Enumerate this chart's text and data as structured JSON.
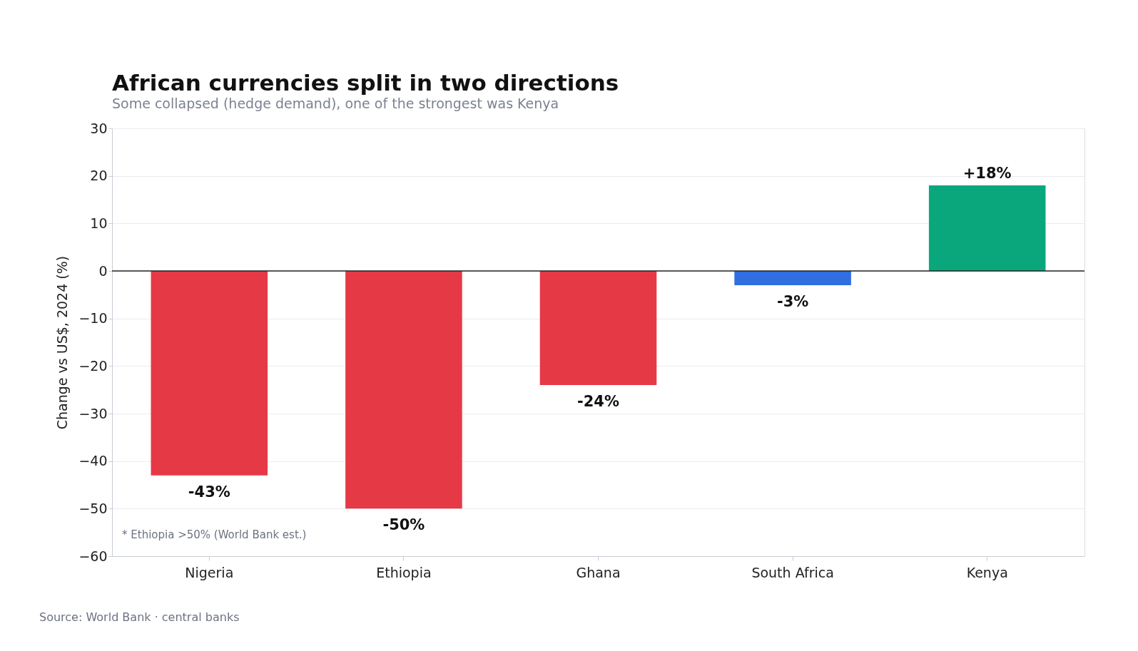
{
  "chart_data": {
    "type": "bar",
    "title": "African currencies split in two directions",
    "subtitle": "Some collapsed (hedge demand), one of the strongest was Kenya",
    "ylabel": "Change vs US$, 2024 (%)",
    "categories": [
      "Nigeria",
      "Ethiopia",
      "Ghana",
      "South Africa",
      "Kenya"
    ],
    "values": [
      -43,
      -50,
      -24,
      -3,
      18
    ],
    "colors": [
      "#e63946",
      "#e63946",
      "#e63946",
      "#2f6fdf",
      "#0aa77d"
    ],
    "value_labels": [
      "-43%",
      "-50%",
      "-24%",
      "-3%",
      "+18%"
    ],
    "ylim": [
      -60,
      30
    ],
    "yticks": [
      {
        "value": -60,
        "label": "−60"
      },
      {
        "value": -50,
        "label": "−50"
      },
      {
        "value": -40,
        "label": "−40"
      },
      {
        "value": -30,
        "label": "−30"
      },
      {
        "value": -20,
        "label": "−20"
      },
      {
        "value": -10,
        "label": "−10"
      },
      0,
      10,
      20,
      30
    ],
    "grid": "y",
    "ref_lines": [
      {
        "axis": "y",
        "value": 0,
        "color": "#222222"
      }
    ],
    "annotations": [
      "* Ethiopia >50% (World Bank est.)",
      "Source: World Bank · central banks"
    ]
  }
}
